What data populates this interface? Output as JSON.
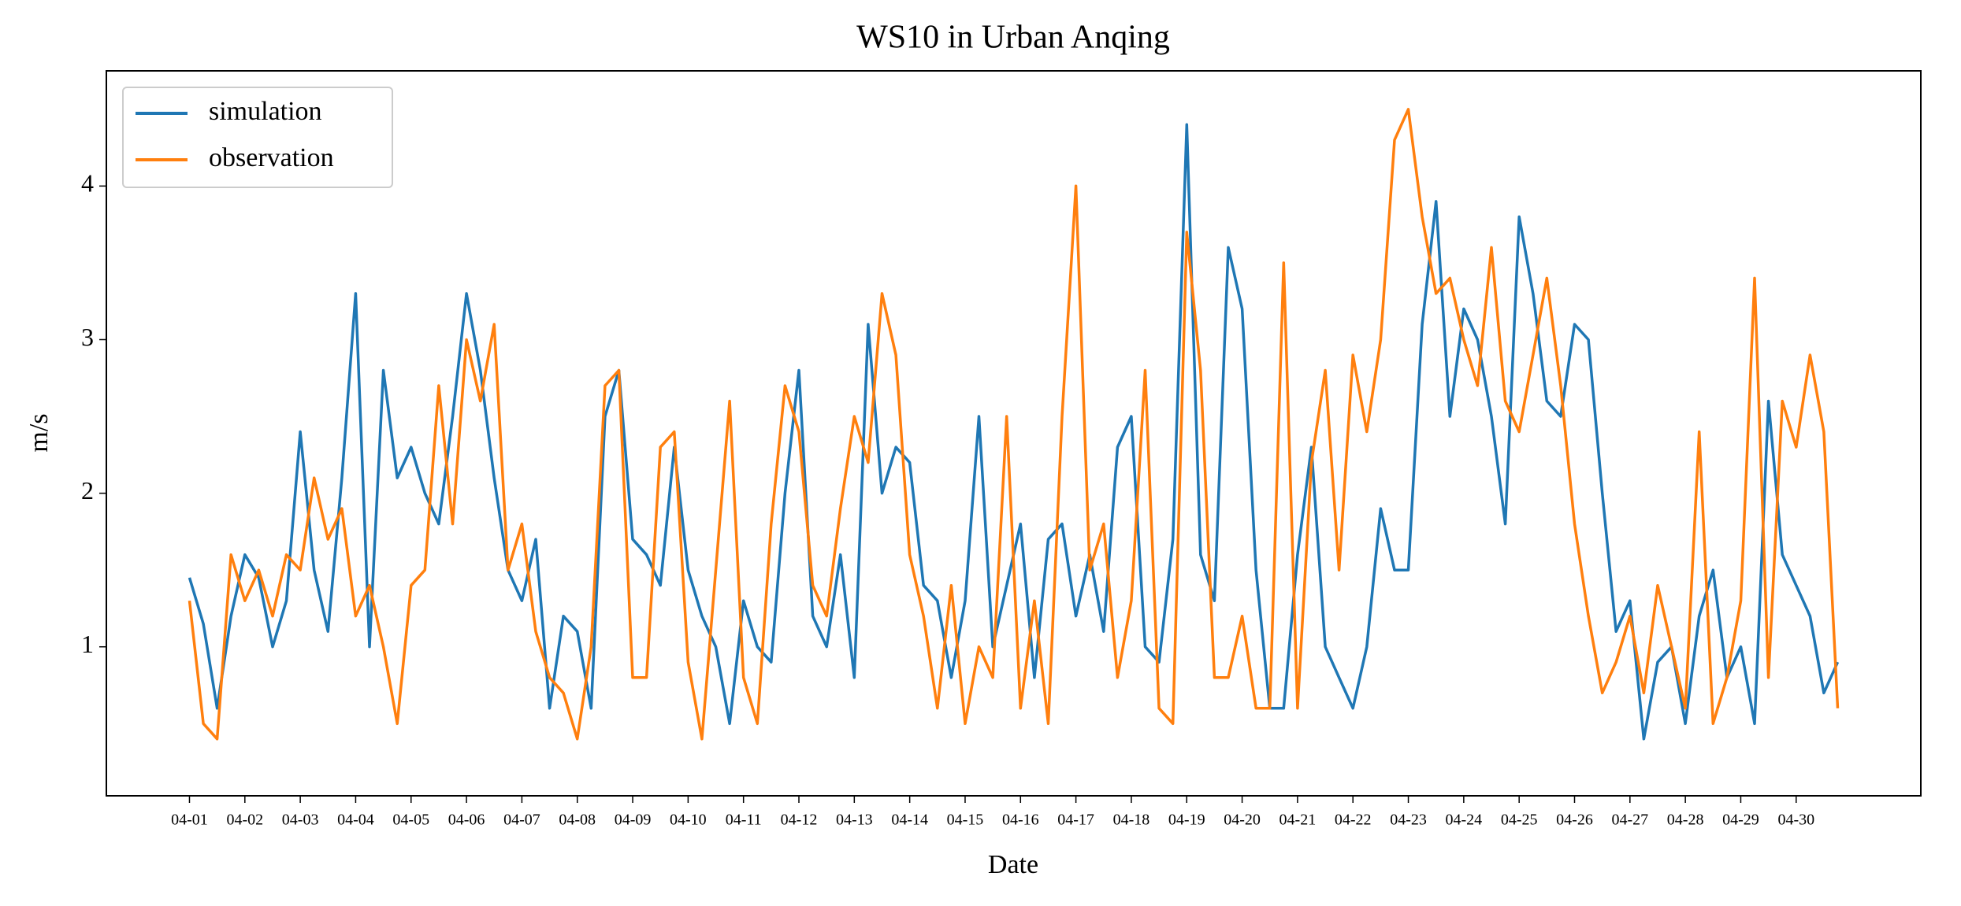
{
  "chart_data": {
    "type": "line",
    "title": "WS10 in Urban Anqing",
    "xlabel": "Date",
    "ylabel": "m/s",
    "x": [
      0,
      6,
      12,
      18,
      24,
      30,
      36,
      42,
      48,
      54,
      60,
      66,
      72,
      78,
      84,
      90,
      96,
      102,
      108,
      114,
      120,
      126,
      132,
      138,
      144,
      150,
      156,
      162,
      168,
      174,
      180,
      186,
      192,
      198,
      204,
      210,
      216,
      222,
      228,
      234,
      240,
      246,
      252,
      258,
      264,
      270,
      276,
      282,
      288,
      294,
      300,
      306,
      312,
      318,
      324,
      330,
      336,
      342,
      348,
      354,
      360,
      366,
      372,
      378,
      384,
      390,
      396,
      402,
      408,
      414,
      420,
      426,
      432,
      438,
      444,
      450,
      456,
      462,
      468,
      474,
      480,
      486,
      492,
      498,
      504,
      510,
      516,
      522,
      528,
      534,
      540,
      546,
      552,
      558,
      564,
      570,
      576,
      582,
      588,
      594,
      600,
      606,
      612,
      618,
      624,
      630,
      636,
      642,
      648,
      654,
      660,
      666,
      672,
      678,
      684,
      690,
      696,
      702,
      708,
      714
    ],
    "series": [
      {
        "name": "simulation",
        "color": "#1f77b4",
        "values": [
          1.45,
          1.15,
          0.6,
          1.2,
          1.6,
          1.45,
          1.0,
          1.3,
          2.4,
          1.5,
          1.1,
          2.1,
          3.3,
          1.0,
          2.8,
          2.1,
          2.3,
          2.0,
          1.8,
          2.5,
          3.3,
          2.8,
          2.1,
          1.5,
          1.3,
          1.7,
          0.6,
          1.2,
          1.1,
          0.6,
          2.5,
          2.8,
          1.7,
          1.6,
          1.4,
          2.3,
          1.5,
          1.2,
          1.0,
          0.5,
          1.3,
          1.0,
          0.9,
          2.0,
          2.8,
          1.2,
          1.0,
          1.6,
          0.8,
          3.1,
          2.0,
          2.3,
          2.2,
          1.4,
          1.3,
          0.8,
          1.3,
          2.5,
          1.0,
          1.4,
          1.8,
          0.8,
          1.7,
          1.8,
          1.2,
          1.6,
          1.1,
          2.3,
          2.5,
          1.0,
          0.9,
          1.7,
          4.4,
          1.6,
          1.3,
          3.6,
          3.2,
          1.5,
          0.6,
          0.6,
          1.6,
          2.3,
          1.0,
          0.8,
          0.6,
          1.0,
          1.9,
          1.5,
          1.5,
          3.1,
          3.9,
          2.5,
          3.2,
          3.0,
          2.5,
          1.8,
          3.8,
          3.3,
          2.6,
          2.5,
          3.1,
          3.0,
          2.0,
          1.1,
          1.3,
          0.4,
          0.9,
          1.0,
          0.5,
          1.2,
          1.5,
          0.8,
          1.0,
          0.5,
          2.6,
          1.6,
          1.4,
          1.2,
          0.7,
          0.9
        ]
      },
      {
        "name": "observation",
        "color": "#ff7f0e",
        "values": [
          1.3,
          0.5,
          0.4,
          1.6,
          1.3,
          1.5,
          1.2,
          1.6,
          1.5,
          2.1,
          1.7,
          1.9,
          1.2,
          1.4,
          1.0,
          0.5,
          1.4,
          1.5,
          2.7,
          1.8,
          3.0,
          2.6,
          3.1,
          1.5,
          1.8,
          1.1,
          0.8,
          0.7,
          0.4,
          1.0,
          2.7,
          2.8,
          0.8,
          0.8,
          2.3,
          2.4,
          0.9,
          0.4,
          1.5,
          2.6,
          0.8,
          0.5,
          1.8,
          2.7,
          2.4,
          1.4,
          1.2,
          1.9,
          2.5,
          2.2,
          3.3,
          2.9,
          1.6,
          1.2,
          0.6,
          1.4,
          0.5,
          1.0,
          0.8,
          2.5,
          0.6,
          1.3,
          0.5,
          2.5,
          4.0,
          1.5,
          1.8,
          0.8,
          1.3,
          2.8,
          0.6,
          0.5,
          3.7,
          2.8,
          0.8,
          0.8,
          1.2,
          0.6,
          0.6,
          3.5,
          0.6,
          2.2,
          2.8,
          1.5,
          2.9,
          2.4,
          3.0,
          4.3,
          4.5,
          3.8,
          3.3,
          3.4,
          3.0,
          2.7,
          3.6,
          2.6,
          2.4,
          2.9,
          3.4,
          2.7,
          1.8,
          1.2,
          0.7,
          0.9,
          1.2,
          0.7,
          1.4,
          1.0,
          0.6,
          2.4,
          0.5,
          0.8,
          1.3,
          3.4,
          0.8,
          2.6,
          2.3,
          2.9,
          2.4,
          0.6
        ]
      }
    ],
    "xlim": [
      -36,
      750
    ],
    "ylim": [
      0.03,
      4.75
    ],
    "xticks": [
      {
        "value": 0,
        "label": "04-01"
      },
      {
        "value": 24,
        "label": "04-02"
      },
      {
        "value": 48,
        "label": "04-03"
      },
      {
        "value": 72,
        "label": "04-04"
      },
      {
        "value": 96,
        "label": "04-05"
      },
      {
        "value": 120,
        "label": "04-06"
      },
      {
        "value": 144,
        "label": "04-07"
      },
      {
        "value": 168,
        "label": "04-08"
      },
      {
        "value": 192,
        "label": "04-09"
      },
      {
        "value": 216,
        "label": "04-10"
      },
      {
        "value": 240,
        "label": "04-11"
      },
      {
        "value": 264,
        "label": "04-12"
      },
      {
        "value": 288,
        "label": "04-13"
      },
      {
        "value": 312,
        "label": "04-14"
      },
      {
        "value": 336,
        "label": "04-15"
      },
      {
        "value": 360,
        "label": "04-16"
      },
      {
        "value": 384,
        "label": "04-17"
      },
      {
        "value": 408,
        "label": "04-18"
      },
      {
        "value": 432,
        "label": "04-19"
      },
      {
        "value": 456,
        "label": "04-20"
      },
      {
        "value": 480,
        "label": "04-21"
      },
      {
        "value": 504,
        "label": "04-22"
      },
      {
        "value": 528,
        "label": "04-23"
      },
      {
        "value": 552,
        "label": "04-24"
      },
      {
        "value": 576,
        "label": "04-25"
      },
      {
        "value": 600,
        "label": "04-26"
      },
      {
        "value": 624,
        "label": "04-27"
      },
      {
        "value": 648,
        "label": "04-28"
      },
      {
        "value": 672,
        "label": "04-29"
      },
      {
        "value": 696,
        "label": "04-30"
      }
    ],
    "yticks": [
      1,
      2,
      3,
      4
    ],
    "legend": "upper left"
  }
}
